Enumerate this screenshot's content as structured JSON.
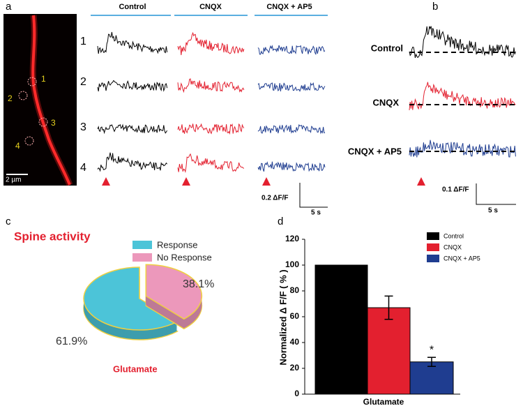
{
  "figure": {
    "panel_a": {
      "label": "a",
      "scale_bar": "2 µm",
      "roi_labels": [
        "1",
        "2",
        "3",
        "4"
      ],
      "conditions": [
        "Control",
        "CNQX",
        "CNQX + AP5"
      ],
      "rows": [
        "1",
        "2",
        "3",
        "4"
      ],
      "amplitude_scale": "0.2 ΔF/F",
      "time_scale": "5 s"
    },
    "panel_b": {
      "label": "b",
      "conditions": [
        "Control",
        "CNQX",
        "CNQX + AP5"
      ],
      "amplitude_scale": "0.1 ΔF/F",
      "time_scale": "5 s"
    },
    "panel_c_label": "c",
    "panel_d_label": "d"
  },
  "chart_data": [
    {
      "type": "pie",
      "title": "Spine activity",
      "categories": [
        "Response",
        "No Response"
      ],
      "values": [
        61.9,
        38.1
      ],
      "value_labels": [
        "61.9%",
        "38.1%"
      ],
      "colors": [
        "#4cc4d8",
        "#ec98bb"
      ],
      "xlabel": "Glutamate"
    },
    {
      "type": "bar",
      "ylabel": "Normalized Δ F/F ( % )",
      "categories": [
        "Glutamate"
      ],
      "series": [
        {
          "name": "Control",
          "color": "#000000",
          "values": [
            100
          ]
        },
        {
          "name": "CNQX",
          "color": "#e3202f",
          "values": [
            67
          ],
          "errors": [
            9
          ]
        },
        {
          "name": "CNQX + AP5",
          "color": "#1f3d90",
          "values": [
            25
          ],
          "errors": [
            3.5
          ],
          "annotation": "*"
        }
      ],
      "ylim": [
        0,
        120
      ],
      "yticks": [
        0,
        20,
        40,
        60,
        80,
        100,
        120
      ]
    }
  ]
}
